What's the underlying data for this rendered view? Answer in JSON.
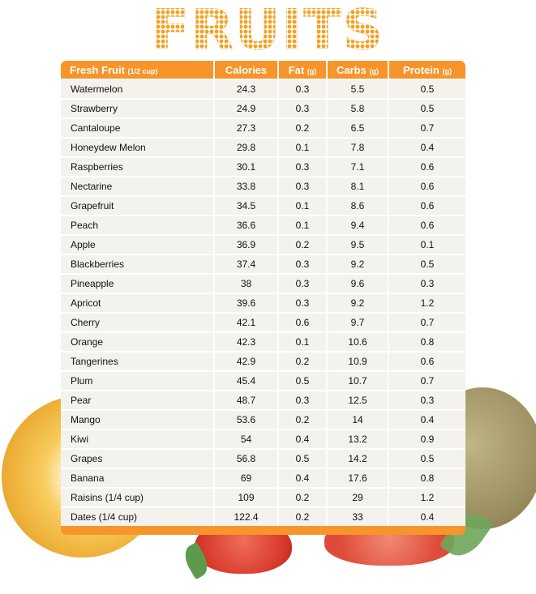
{
  "title": "FRUITS",
  "table": {
    "headers": [
      {
        "label": "Fresh Fruit",
        "unit": "(1/2 cup)"
      },
      {
        "label": "Calories",
        "unit": ""
      },
      {
        "label": "Fat",
        "unit": "(g)"
      },
      {
        "label": "Carbs",
        "unit": "(g)"
      },
      {
        "label": "Protein",
        "unit": "(g)"
      }
    ],
    "rows": [
      [
        "Watermelon",
        "24.3",
        "0.3",
        "5.5",
        "0.5"
      ],
      [
        "Strawberry",
        "24.9",
        "0.3",
        "5.8",
        "0.5"
      ],
      [
        "Cantaloupe",
        "27.3",
        "0.2",
        "6.5",
        "0.7"
      ],
      [
        "Honeydew Melon",
        "29.8",
        "0.1",
        "7.8",
        "0.4"
      ],
      [
        "Raspberries",
        "30.1",
        "0.3",
        "7.1",
        "0.6"
      ],
      [
        "Nectarine",
        "33.8",
        "0.3",
        "8.1",
        "0.6"
      ],
      [
        "Grapefruit",
        "34.5",
        "0.1",
        "8.6",
        "0.6"
      ],
      [
        "Peach",
        "36.6",
        "0.1",
        "9.4",
        "0.6"
      ],
      [
        "Apple",
        "36.9",
        "0.2",
        "9.5",
        "0.1"
      ],
      [
        "Blackberries",
        "37.4",
        "0.3",
        "9.2",
        "0.5"
      ],
      [
        "Pineapple",
        "38",
        "0.3",
        "9.6",
        "0.3"
      ],
      [
        "Apricot",
        "39.6",
        "0.3",
        "9.2",
        "1.2"
      ],
      [
        "Cherry",
        "42.1",
        "0.6",
        "9.7",
        "0.7"
      ],
      [
        "Orange",
        "42.3",
        "0.1",
        "10.6",
        "0.8"
      ],
      [
        "Tangerines",
        "42.9",
        "0.2",
        "10.9",
        "0.6"
      ],
      [
        "Plum",
        "45.4",
        "0.5",
        "10.7",
        "0.7"
      ],
      [
        "Pear",
        "48.7",
        "0.3",
        "12.5",
        "0.3"
      ],
      [
        "Mango",
        "53.6",
        "0.2",
        "14",
        "0.4"
      ],
      [
        "Kiwi",
        "54",
        "0.4",
        "13.2",
        "0.9"
      ],
      [
        "Grapes",
        "56.8",
        "0.5",
        "14.2",
        "0.5"
      ],
      [
        "Banana",
        "69",
        "0.4",
        "17.6",
        "0.8"
      ],
      [
        "Raisins (1/4 cup)",
        "109",
        "0.2",
        "29",
        "1.2"
      ],
      [
        "Dates (1/4 cup)",
        "122.4",
        "0.2",
        "33",
        "0.4"
      ]
    ]
  },
  "colors": {
    "accent": "#f7942a",
    "cell": "#f3f2ec",
    "title": "#f5a020"
  }
}
